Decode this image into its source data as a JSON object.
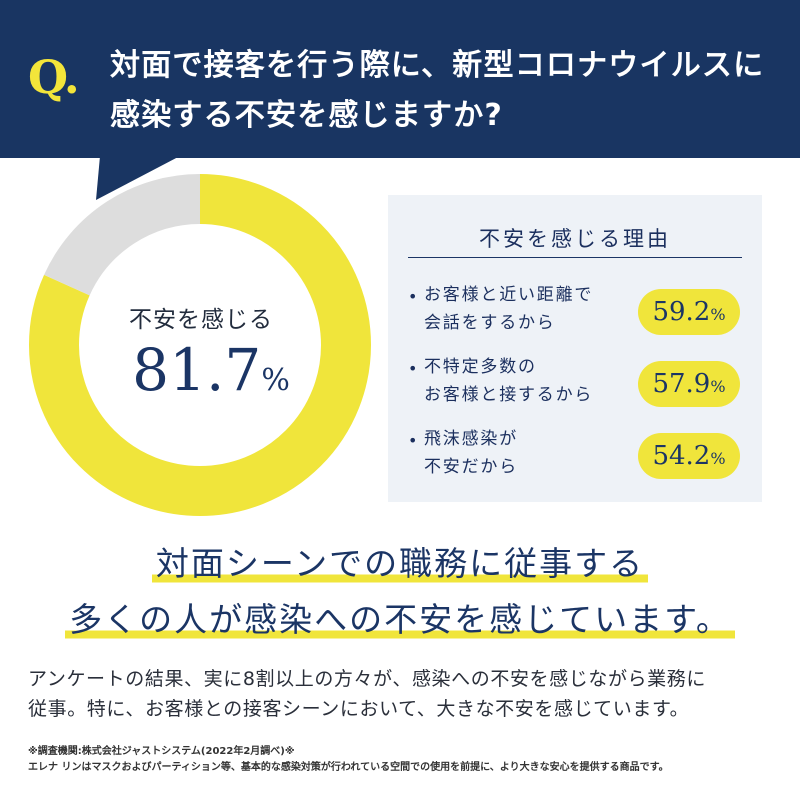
{
  "header": {
    "q_mark": "Q.",
    "question_line1": "対面で接客を行う際に、新型コロナウイルスに",
    "question_line2": "感染する不安を感じますか?"
  },
  "colors": {
    "navy": "#193562",
    "yellow": "#f0e53b",
    "gray": "#dddddd",
    "panel_bg": "#eef2f7"
  },
  "chart_data": {
    "type": "pie",
    "variant": "donut",
    "slices": [
      {
        "label": "不安を感じる",
        "value": 81.7,
        "color": "#f0e53b"
      },
      {
        "label": "",
        "value": 18.3,
        "color": "#dddddd"
      }
    ],
    "center_label": "不安を感じる",
    "center_value": "81.7",
    "center_unit": "%"
  },
  "reasons": {
    "title": "不安を感じる理由",
    "items": [
      {
        "line1": "お客様と近い距離で",
        "line2": "会話をするから",
        "value": "59.2",
        "unit": "%"
      },
      {
        "line1": "不特定多数の",
        "line2": "お客様と接するから",
        "value": "57.9",
        "unit": "%"
      },
      {
        "line1": "飛沫感染が",
        "line2": "不安だから",
        "value": "54.2",
        "unit": "%"
      }
    ]
  },
  "headline": {
    "line1": "対面シーンでの職務に従事する",
    "line2": "多くの人が感染への不安を感じています。"
  },
  "body": {
    "line1": "アンケートの結果、実に8割以上の方々が、感染への不安を感じながら業務に",
    "line2": "従事。特に、お客様との接客シーンにおいて、大きな不安を感じています。"
  },
  "notes": {
    "line1": "※調査機関:株式会社ジャストシステム(2022年2月調べ)※",
    "line2": "エレナ リンはマスクおよびパーティション等、基本的な感染対策が行われている空間での使用を前提に、より大きな安心を提供する商品です。"
  }
}
